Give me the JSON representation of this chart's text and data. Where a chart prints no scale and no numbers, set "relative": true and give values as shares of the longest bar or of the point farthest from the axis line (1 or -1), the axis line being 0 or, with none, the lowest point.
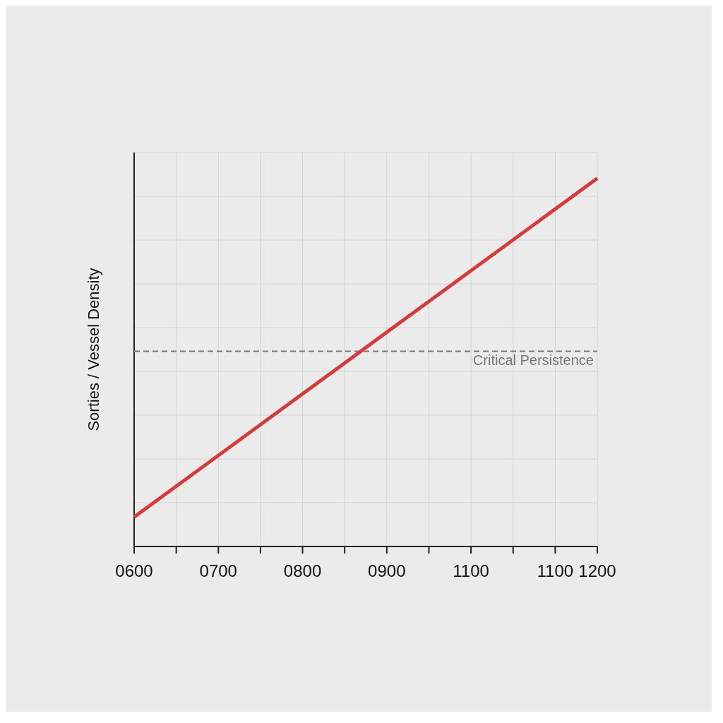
{
  "chart_data": {
    "type": "line",
    "ylabel": "Sorties / Vessel Density",
    "relative": true,
    "categories": [
      "0600",
      null,
      "0700",
      null,
      "0800",
      null,
      "0900",
      null,
      "1100",
      null,
      "1100",
      "1200"
    ],
    "series": [
      {
        "color": "#d63a3a",
        "values": [
          0.08,
          null,
          null,
          null,
          null,
          null,
          null,
          null,
          null,
          null,
          null,
          1
        ]
      }
    ],
    "ref_lines": [
      {
        "axis": "y",
        "value": 0.53,
        "label": "Critical Persistence",
        "color": "#777777",
        "line_style": "dashed"
      }
    ],
    "grid": true,
    "marker": "none",
    "line_style": "solid",
    "legend": false
  }
}
